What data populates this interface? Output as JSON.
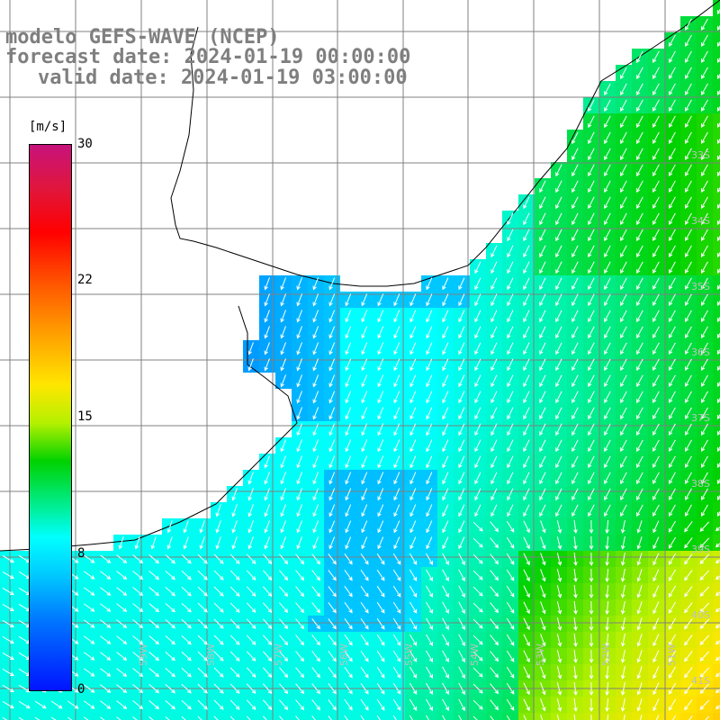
{
  "title": {
    "line1": "modelo GEFS-WAVE (NCEP)",
    "line2": "forecast date: 2024-01-19 00:00:00",
    "line3": "valid date: 2024-01-19 03:00:00"
  },
  "colorbar": {
    "unit": "[m/s]",
    "ticks": [
      "30",
      "22",
      "15",
      "8",
      "0"
    ],
    "tick_values": [
      30,
      22,
      15,
      8,
      0
    ],
    "range": [
      0,
      30
    ]
  },
  "lat_labels": [
    "33S",
    "34S",
    "35S",
    "36S",
    "37S",
    "38S",
    "39S",
    "40S",
    "41S"
  ],
  "lon_labels": [
    "59W",
    "58W",
    "57W",
    "56W",
    "55W",
    "54W",
    "53W",
    "52W",
    "51W"
  ],
  "colors": {
    "title_text": "#7f7f7f",
    "land": "#ffffff",
    "grid": "#808080",
    "coast": "#000000",
    "arrows": "#ffffff"
  }
}
